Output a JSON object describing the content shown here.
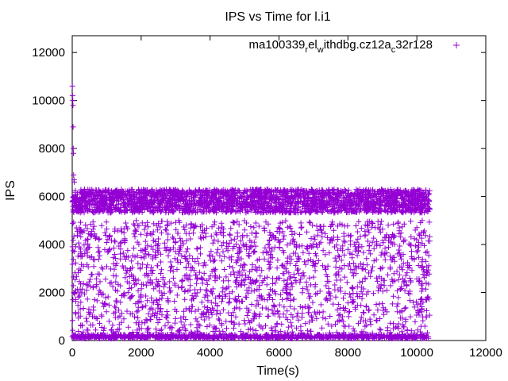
{
  "chart_data": {
    "type": "scatter",
    "title": "IPS vs Time for l.i1",
    "xlabel": "Time(s)",
    "ylabel": "IPS",
    "xlim": [
      0,
      12000
    ],
    "ylim": [
      0,
      12700
    ],
    "x_ticks": [
      "0",
      "2000",
      "4000",
      "6000",
      "8000",
      "10000",
      "12000"
    ],
    "y_ticks": [
      "0",
      "2000",
      "4000",
      "6000",
      "8000",
      "10000",
      "12000"
    ],
    "grid": false,
    "legend_position": "top-right",
    "marker": "plus",
    "color": "#9400d3",
    "series": [
      {
        "name_main": "ma100339",
        "name_sub1": "r",
        "name_mid1": "el",
        "name_sub2": "w",
        "name_mid2": "ithdbg.cz12a",
        "name_sub3": "c",
        "name_end": "32r128",
        "x_range": [
          0,
          10380
        ],
        "clusters": [
          {
            "label": "high band",
            "y_range": [
              5000,
              6300
            ]
          },
          {
            "label": "low band",
            "y_range": [
              80,
              250
            ]
          },
          {
            "label": "scattered",
            "y_range": [
              300,
              5000
            ]
          }
        ],
        "initial_spikes": [
          {
            "x": 5,
            "y": 10600
          },
          {
            "x": 10,
            "y": 10200
          },
          {
            "x": 15,
            "y": 10000
          },
          {
            "x": 20,
            "y": 9800
          },
          {
            "x": 25,
            "y": 8900
          },
          {
            "x": 30,
            "y": 8000
          },
          {
            "x": 35,
            "y": 7800
          },
          {
            "x": 40,
            "y": 6900
          },
          {
            "x": 50,
            "y": 6700
          },
          {
            "x": 60,
            "y": 6600
          }
        ]
      }
    ]
  }
}
